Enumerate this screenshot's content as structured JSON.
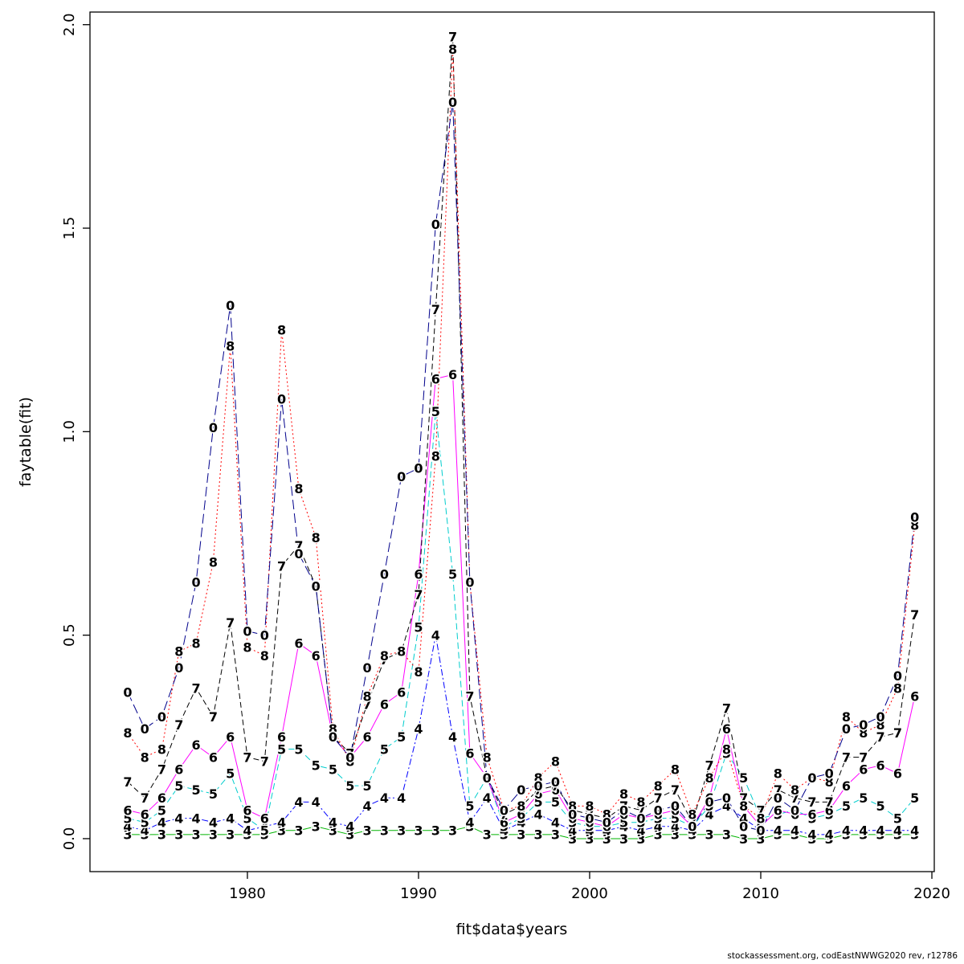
{
  "page": {
    "background": "#ffffff",
    "footer": "stockassessment.org, codEastNWWG2020 rev, r12786"
  },
  "chart_data": {
    "type": "line",
    "title": "",
    "xlabel": "fit$data$years",
    "ylabel": "faytable(fit)",
    "x_ticks": [
      1980,
      1990,
      2000,
      2010,
      2020
    ],
    "y_ticks": [
      0.0,
      0.5,
      1.0,
      1.5,
      2.0
    ],
    "xlim": [
      1970.8,
      2020.14
    ],
    "ylim": [
      -0.081,
      2.031
    ],
    "grid": false,
    "legend": "none",
    "point_style": "each data point drawn as the digit glyph of its series label",
    "x": [
      1973,
      1974,
      1975,
      1976,
      1977,
      1978,
      1979,
      1980,
      1981,
      1982,
      1983,
      1984,
      1985,
      1986,
      1987,
      1988,
      1989,
      1990,
      1991,
      1992,
      1993,
      1994,
      1995,
      1996,
      1997,
      1998,
      1999,
      2000,
      2001,
      2002,
      2003,
      2004,
      2005,
      2006,
      2007,
      2008,
      2009,
      2010,
      2011,
      2012,
      2013,
      2014,
      2015,
      2016,
      2017,
      2018,
      2019
    ],
    "series": [
      {
        "label": "3",
        "color": "#00b400",
        "dash": "",
        "values": [
          0.01,
          0.01,
          0.01,
          0.01,
          0.01,
          0.01,
          0.01,
          0.01,
          0.01,
          0.02,
          0.02,
          0.03,
          0.02,
          0.01,
          0.02,
          0.02,
          0.02,
          0.02,
          0.02,
          0.02,
          0.03,
          0.01,
          0.01,
          0.01,
          0.01,
          0.01,
          0.0,
          0.0,
          0.0,
          0.0,
          0.0,
          0.01,
          0.01,
          0.01,
          0.01,
          0.01,
          0.0,
          0.0,
          0.01,
          0.01,
          0.0,
          0.0,
          0.01,
          0.01,
          0.01,
          0.01,
          0.01
        ]
      },
      {
        "label": "4",
        "color": "#0000ff",
        "dash": "8 3 2 3",
        "values": [
          0.03,
          0.02,
          0.04,
          0.05,
          0.05,
          0.04,
          0.05,
          0.02,
          0.03,
          0.04,
          0.09,
          0.09,
          0.04,
          0.03,
          0.08,
          0.1,
          0.1,
          0.27,
          0.5,
          0.25,
          0.04,
          0.1,
          0.02,
          0.04,
          0.06,
          0.04,
          0.02,
          0.02,
          0.02,
          0.03,
          0.02,
          0.03,
          0.03,
          0.02,
          0.06,
          0.08,
          0.05,
          0.02,
          0.02,
          0.02,
          0.01,
          0.01,
          0.02,
          0.02,
          0.02,
          0.02,
          0.02
        ]
      },
      {
        "label": "5",
        "color": "#00cdcd",
        "dash": "8 4",
        "values": [
          0.05,
          0.04,
          0.07,
          0.13,
          0.12,
          0.11,
          0.16,
          0.05,
          0.02,
          0.22,
          0.22,
          0.18,
          0.17,
          0.13,
          0.13,
          0.22,
          0.25,
          0.52,
          1.05,
          0.65,
          0.08,
          0.15,
          0.03,
          0.05,
          0.09,
          0.09,
          0.04,
          0.03,
          0.03,
          0.04,
          0.04,
          0.05,
          0.05,
          0.03,
          0.08,
          0.21,
          0.15,
          0.05,
          0.06,
          0.07,
          0.05,
          0.06,
          0.08,
          0.1,
          0.08,
          0.05,
          0.1
        ]
      },
      {
        "label": "6",
        "color": "#ff00ff",
        "dash": "",
        "values": [
          0.07,
          0.06,
          0.1,
          0.17,
          0.23,
          0.2,
          0.25,
          0.07,
          0.05,
          0.25,
          0.48,
          0.45,
          0.25,
          0.2,
          0.25,
          0.33,
          0.36,
          0.65,
          1.13,
          1.14,
          0.21,
          0.15,
          0.04,
          0.06,
          0.11,
          0.12,
          0.05,
          0.04,
          0.03,
          0.06,
          0.05,
          0.06,
          0.07,
          0.03,
          0.1,
          0.27,
          0.08,
          0.03,
          0.07,
          0.06,
          0.06,
          0.07,
          0.13,
          0.17,
          0.18,
          0.16,
          0.35
        ]
      },
      {
        "label": "7",
        "color": "#000000",
        "dash": "7 4",
        "values": [
          0.14,
          0.1,
          0.17,
          0.28,
          0.37,
          0.3,
          0.53,
          0.2,
          0.19,
          0.67,
          0.72,
          0.62,
          0.25,
          0.21,
          0.33,
          0.44,
          0.46,
          0.6,
          1.3,
          1.97,
          0.35,
          0.15,
          0.06,
          0.08,
          0.12,
          0.13,
          0.07,
          0.06,
          0.05,
          0.08,
          0.07,
          0.1,
          0.12,
          0.04,
          0.18,
          0.32,
          0.1,
          0.07,
          0.12,
          0.1,
          0.09,
          0.09,
          0.2,
          0.2,
          0.25,
          0.26,
          0.55
        ]
      },
      {
        "label": "8",
        "color": "#ff0000",
        "dash": "2 3",
        "values": [
          0.26,
          0.2,
          0.22,
          0.46,
          0.48,
          0.68,
          1.21,
          0.47,
          0.45,
          1.25,
          0.86,
          0.74,
          0.27,
          0.19,
          0.35,
          0.45,
          0.46,
          0.41,
          0.94,
          1.94,
          0.63,
          0.2,
          0.07,
          0.08,
          0.15,
          0.19,
          0.08,
          0.08,
          0.06,
          0.11,
          0.09,
          0.13,
          0.17,
          0.06,
          0.15,
          0.22,
          0.08,
          0.05,
          0.16,
          0.12,
          0.15,
          0.14,
          0.3,
          0.26,
          0.28,
          0.37,
          0.77
        ]
      },
      {
        "label": "0",
        "color": "#00008b",
        "dash": "12 5",
        "values": [
          0.36,
          0.27,
          0.3,
          0.42,
          0.63,
          1.01,
          1.31,
          0.51,
          0.5,
          1.08,
          0.7,
          0.62,
          0.25,
          0.2,
          0.42,
          0.65,
          0.89,
          0.91,
          1.51,
          1.81,
          0.63,
          0.15,
          0.07,
          0.12,
          0.13,
          0.14,
          0.06,
          0.05,
          0.04,
          0.07,
          0.05,
          0.07,
          0.08,
          0.03,
          0.09,
          0.1,
          0.03,
          0.02,
          0.1,
          0.07,
          0.15,
          0.16,
          0.27,
          0.28,
          0.3,
          0.4,
          0.79
        ]
      }
    ]
  }
}
